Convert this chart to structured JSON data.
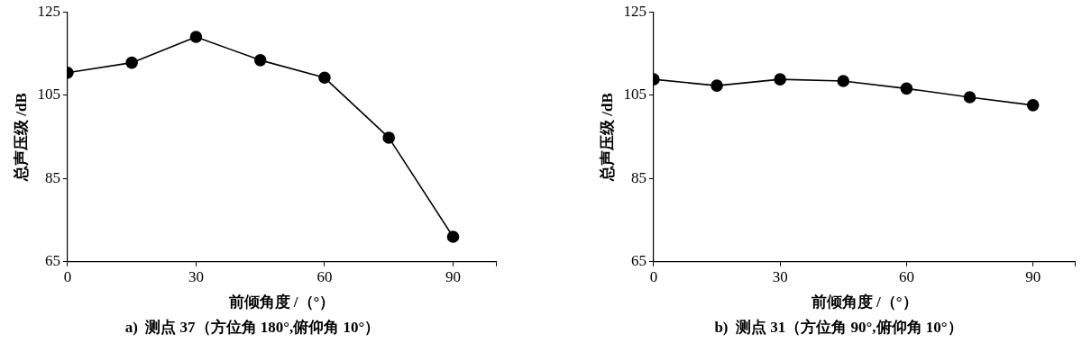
{
  "chart_data": [
    {
      "type": "line",
      "title": "a)  测点 37（方位角 180°,俯仰角 10°）",
      "xlabel": "前倾角度 /（°）",
      "ylabel": "总声压级 /dB",
      "x": [
        0,
        15,
        30,
        45,
        60,
        75,
        90
      ],
      "series": [
        {
          "color": "#000000",
          "values": [
            110.4,
            112.8,
            119.0,
            113.4,
            109.2,
            94.8,
            71.0
          ]
        }
      ],
      "xlim": [
        0,
        100
      ],
      "xticks": [
        0,
        30,
        60,
        90,
        {
          "value": 100,
          "label": null
        }
      ],
      "ylim": [
        65,
        125
      ],
      "yticks": [
        65,
        85,
        105,
        125
      ],
      "marker": "circle",
      "line_style": "solid",
      "grid": false,
      "legend": false
    },
    {
      "type": "line",
      "title": "b)  测点 31（方位角 90°,俯仰角 10°）",
      "xlabel": "前倾角度 /（°）",
      "ylabel": "总声压级 /dB",
      "x": [
        0,
        15,
        30,
        45,
        60,
        75,
        90
      ],
      "series": [
        {
          "color": "#000000",
          "values": [
            108.8,
            107.3,
            108.8,
            108.4,
            106.6,
            104.5,
            102.6
          ]
        }
      ],
      "xlim": [
        0,
        100
      ],
      "xticks": [
        0,
        30,
        60,
        90,
        {
          "value": 100,
          "label": null
        }
      ],
      "ylim": [
        65,
        125
      ],
      "yticks": [
        65,
        85,
        105,
        125
      ],
      "marker": "circle",
      "line_style": "solid",
      "grid": false,
      "legend": false
    }
  ]
}
